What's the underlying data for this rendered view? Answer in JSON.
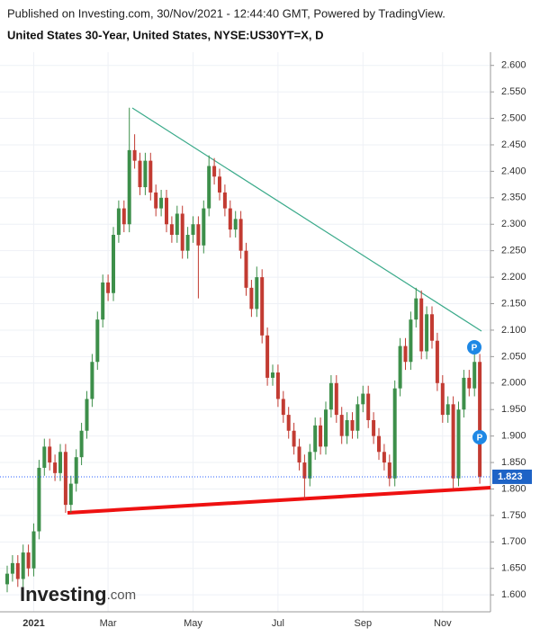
{
  "chart_data": {
    "type": "candlestick",
    "header": "Published on Investing.com, 30/Nov/2021 - 12:44:40 GMT, Powered by TradingView.",
    "title": "United States 30-Year, United States, NYSE:US30YT=X, D",
    "logo": "Investing",
    "logo_suffix": ".com",
    "annotations": [
      "P",
      "P"
    ],
    "up_color": "#3d8f4a",
    "down_color": "#c23b32",
    "grid": true,
    "last_value": 1.823,
    "ylim": [
      1.568,
      2.625
    ],
    "yticks": [
      {
        "value": 1.6,
        "label": "1.600"
      },
      {
        "value": 1.65,
        "label": "1.650"
      },
      {
        "value": 1.7,
        "label": "1.700"
      },
      {
        "value": 1.75,
        "label": "1.750"
      },
      {
        "value": 1.8,
        "label": "1.800"
      },
      {
        "value": 1.85,
        "label": "1.850"
      },
      {
        "value": 1.9,
        "label": "1.900"
      },
      {
        "value": 1.95,
        "label": "1.950"
      },
      {
        "value": 2.0,
        "label": "2.000"
      },
      {
        "value": 2.05,
        "label": "2.050"
      },
      {
        "value": 2.1,
        "label": "2.100"
      },
      {
        "value": 2.15,
        "label": "2.150"
      },
      {
        "value": 2.2,
        "label": "2.200"
      },
      {
        "value": 2.25,
        "label": "2.250"
      },
      {
        "value": 2.3,
        "label": "2.300"
      },
      {
        "value": 2.35,
        "label": "2.350"
      },
      {
        "value": 2.4,
        "label": "2.400"
      },
      {
        "value": 2.45,
        "label": "2.450"
      },
      {
        "value": 2.5,
        "label": "2.500"
      },
      {
        "value": 2.55,
        "label": "2.550"
      },
      {
        "value": 2.6,
        "label": "2.600"
      }
    ],
    "categories": [
      null,
      null,
      null,
      null,
      null,
      "2021",
      null,
      null,
      null,
      null,
      null,
      null,
      null,
      null,
      null,
      null,
      null,
      null,
      null,
      "Mar",
      null,
      null,
      null,
      null,
      null,
      null,
      null,
      null,
      null,
      null,
      null,
      null,
      null,
      null,
      null,
      "May",
      null,
      null,
      null,
      null,
      null,
      null,
      null,
      null,
      null,
      null,
      null,
      null,
      null,
      null,
      null,
      "Jul",
      null,
      null,
      null,
      null,
      null,
      null,
      null,
      null,
      null,
      null,
      null,
      null,
      null,
      null,
      null,
      "Sep",
      null,
      null,
      null,
      null,
      null,
      null,
      null,
      null,
      null,
      null,
      null,
      null,
      null,
      null,
      "Nov",
      null,
      null,
      null,
      null,
      null,
      null,
      null
    ],
    "open": [
      1.62,
      1.64,
      1.66,
      1.63,
      1.68,
      1.65,
      1.72,
      1.84,
      1.88,
      1.85,
      1.83,
      1.87,
      1.77,
      1.81,
      1.86,
      1.91,
      1.97,
      2.04,
      2.12,
      2.19,
      2.17,
      2.28,
      2.33,
      2.3,
      2.44,
      2.42,
      2.37,
      2.42,
      2.36,
      2.33,
      2.35,
      2.3,
      2.28,
      2.32,
      2.25,
      2.28,
      2.3,
      2.26,
      2.33,
      2.41,
      2.39,
      2.36,
      2.33,
      2.29,
      2.31,
      2.25,
      2.18,
      2.14,
      2.2,
      2.09,
      2.01,
      2.02,
      1.97,
      1.94,
      1.91,
      1.88,
      1.85,
      1.82,
      1.87,
      1.92,
      1.88,
      1.95,
      2.0,
      1.94,
      1.9,
      1.93,
      1.91,
      1.96,
      1.98,
      1.93,
      1.9,
      1.87,
      1.85,
      1.82,
      1.99,
      2.07,
      2.04,
      2.12,
      2.16,
      2.06,
      2.13,
      2.08,
      2.0,
      1.94,
      1.96,
      1.82,
      1.95,
      2.01,
      1.99,
      2.04
    ],
    "high": [
      1.655,
      1.675,
      1.675,
      1.695,
      1.695,
      1.735,
      1.855,
      1.895,
      1.895,
      1.865,
      1.885,
      1.885,
      1.825,
      1.875,
      1.925,
      1.985,
      2.055,
      2.135,
      2.205,
      2.205,
      2.295,
      2.345,
      2.345,
      2.52,
      2.47,
      2.435,
      2.435,
      2.435,
      2.375,
      2.365,
      2.365,
      2.315,
      2.335,
      2.335,
      2.295,
      2.315,
      2.315,
      2.345,
      2.43,
      2.425,
      2.405,
      2.375,
      2.345,
      2.325,
      2.325,
      2.265,
      2.195,
      2.22,
      2.215,
      2.105,
      2.035,
      2.035,
      1.985,
      1.955,
      1.925,
      1.895,
      1.865,
      1.885,
      1.935,
      1.935,
      1.965,
      2.015,
      2.015,
      1.955,
      1.945,
      1.945,
      1.975,
      1.995,
      1.995,
      1.945,
      1.915,
      1.885,
      1.865,
      2.005,
      2.085,
      2.085,
      2.135,
      2.18,
      2.175,
      2.145,
      2.145,
      2.095,
      2.015,
      1.975,
      1.975,
      1.965,
      2.025,
      2.025,
      2.055,
      2.055
    ],
    "low": [
      1.605,
      1.625,
      1.615,
      1.615,
      1.635,
      1.635,
      1.705,
      1.825,
      1.835,
      1.815,
      1.815,
      1.755,
      1.755,
      1.795,
      1.845,
      1.895,
      1.955,
      2.025,
      2.105,
      2.155,
      2.155,
      2.265,
      2.285,
      2.285,
      2.405,
      2.355,
      2.355,
      2.345,
      2.315,
      2.315,
      2.285,
      2.265,
      2.265,
      2.235,
      2.235,
      2.265,
      2.16,
      2.245,
      2.315,
      2.375,
      2.345,
      2.315,
      2.275,
      2.275,
      2.235,
      2.165,
      2.125,
      2.125,
      2.075,
      1.995,
      1.995,
      1.955,
      1.925,
      1.895,
      1.865,
      1.835,
      1.78,
      1.805,
      1.855,
      1.865,
      1.865,
      1.935,
      1.925,
      1.885,
      1.885,
      1.895,
      1.895,
      1.945,
      1.915,
      1.885,
      1.855,
      1.835,
      1.805,
      1.805,
      1.975,
      2.025,
      2.025,
      2.105,
      2.045,
      2.045,
      2.065,
      1.985,
      1.925,
      1.925,
      1.8,
      1.805,
      1.935,
      1.975,
      1.975,
      1.81
    ],
    "close": [
      1.64,
      1.66,
      1.63,
      1.68,
      1.65,
      1.72,
      1.84,
      1.88,
      1.85,
      1.83,
      1.87,
      1.77,
      1.81,
      1.86,
      1.91,
      1.97,
      2.04,
      2.12,
      2.19,
      2.17,
      2.28,
      2.33,
      2.3,
      2.44,
      2.42,
      2.37,
      2.42,
      2.36,
      2.33,
      2.35,
      2.3,
      2.28,
      2.32,
      2.25,
      2.28,
      2.3,
      2.26,
      2.33,
      2.41,
      2.39,
      2.36,
      2.33,
      2.29,
      2.31,
      2.25,
      2.18,
      2.14,
      2.2,
      2.09,
      2.01,
      2.02,
      1.97,
      1.94,
      1.91,
      1.88,
      1.85,
      1.82,
      1.87,
      1.92,
      1.88,
      1.95,
      2.0,
      1.94,
      1.9,
      1.93,
      1.91,
      1.96,
      1.98,
      1.93,
      1.9,
      1.87,
      1.85,
      1.82,
      1.99,
      2.07,
      2.04,
      2.12,
      2.16,
      2.06,
      2.13,
      2.08,
      2.0,
      1.94,
      1.96,
      1.82,
      1.95,
      2.01,
      1.99,
      2.04,
      1.823
    ]
  }
}
